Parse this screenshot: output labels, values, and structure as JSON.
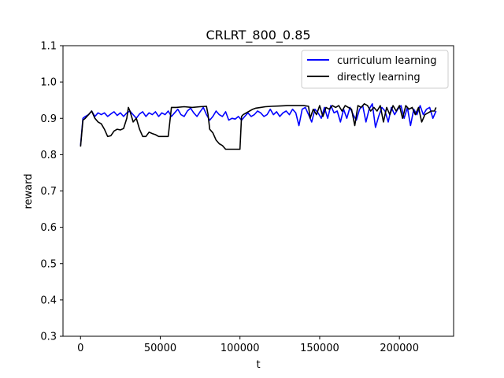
{
  "chart_data": {
    "type": "line",
    "title": "CRLRT_800_0.85",
    "xlabel": "t",
    "ylabel": "reward",
    "xlim": [
      -11000,
      234000
    ],
    "ylim": [
      0.3,
      1.1
    ],
    "xticks": [
      0,
      50000,
      100000,
      150000,
      200000
    ],
    "xtick_labels": [
      "0",
      "50000",
      "100000",
      "150000",
      "200000"
    ],
    "yticks": [
      0.3,
      0.4,
      0.5,
      0.6,
      0.7,
      0.8,
      0.9,
      1.0,
      1.1
    ],
    "ytick_labels": [
      "0.3",
      "0.4",
      "0.5",
      "0.6",
      "0.7",
      "0.8",
      "0.9",
      "1.0",
      "1.1"
    ],
    "grid": false,
    "legend_position": "top-right",
    "series": [
      {
        "name": "curriculum learning",
        "color": "#0000ff",
        "x": [
          0,
          1500,
          3000,
          5000,
          7000,
          9000,
          11000,
          13000,
          15000,
          17000,
          19000,
          21000,
          23000,
          25000,
          27000,
          29000,
          31000,
          33000,
          35000,
          37000,
          39000,
          41000,
          43000,
          45000,
          47000,
          49000,
          51000,
          53000,
          55000,
          57000,
          59000,
          61000,
          63000,
          65000,
          67000,
          69000,
          71000,
          73000,
          75000,
          77000,
          79000,
          81000,
          83000,
          85000,
          87000,
          89000,
          91000,
          93000,
          95000,
          97000,
          99000,
          101000,
          103000,
          105000,
          107000,
          109000,
          111000,
          113000,
          115000,
          117000,
          119000,
          121000,
          123000,
          125000,
          127000,
          129000,
          131000,
          133000,
          135000,
          137000,
          139000,
          141000,
          143000,
          145000,
          147000,
          149000,
          151000,
          153000,
          155000,
          157000,
          159000,
          161000,
          163000,
          165000,
          167000,
          169000,
          171000,
          173000,
          175000,
          177000,
          179000,
          181000,
          183000,
          185000,
          187000,
          189000,
          191000,
          193000,
          195000,
          197000,
          199000,
          201000,
          203000,
          205000,
          207000,
          209000,
          211000,
          213000,
          215000,
          217000,
          219000,
          221000,
          223000
        ],
        "y": [
          0.825,
          0.9,
          0.905,
          0.91,
          0.92,
          0.905,
          0.915,
          0.91,
          0.915,
          0.905,
          0.912,
          0.918,
          0.908,
          0.915,
          0.905,
          0.915,
          0.92,
          0.91,
          0.9,
          0.912,
          0.918,
          0.905,
          0.915,
          0.91,
          0.918,
          0.905,
          0.915,
          0.91,
          0.92,
          0.905,
          0.915,
          0.925,
          0.91,
          0.905,
          0.92,
          0.928,
          0.915,
          0.905,
          0.918,
          0.93,
          0.91,
          0.895,
          0.905,
          0.92,
          0.91,
          0.905,
          0.918,
          0.895,
          0.9,
          0.898,
          0.905,
          0.895,
          0.905,
          0.915,
          0.905,
          0.91,
          0.92,
          0.915,
          0.905,
          0.91,
          0.925,
          0.91,
          0.918,
          0.905,
          0.915,
          0.92,
          0.91,
          0.925,
          0.915,
          0.88,
          0.925,
          0.93,
          0.91,
          0.89,
          0.925,
          0.915,
          0.9,
          0.93,
          0.9,
          0.935,
          0.915,
          0.92,
          0.89,
          0.925,
          0.9,
          0.93,
          0.91,
          0.895,
          0.925,
          0.935,
          0.89,
          0.925,
          0.94,
          0.875,
          0.905,
          0.93,
          0.92,
          0.89,
          0.93,
          0.91,
          0.925,
          0.935,
          0.9,
          0.93,
          0.88,
          0.925,
          0.91,
          0.935,
          0.91,
          0.925,
          0.93,
          0.9,
          0.92
        ]
      },
      {
        "name": "directly learning",
        "color": "#000000",
        "x": [
          0,
          1500,
          3000,
          5000,
          7000,
          9000,
          11000,
          13000,
          15000,
          17000,
          19000,
          21000,
          23000,
          25000,
          27000,
          29000,
          30000,
          31000,
          33000,
          35000,
          37000,
          39000,
          41000,
          43000,
          45000,
          47000,
          49000,
          51000,
          53000,
          55000,
          57000,
          60000,
          65000,
          70000,
          75000,
          79000,
          80000,
          81000,
          83000,
          85000,
          87000,
          89000,
          91000,
          93000,
          96000,
          100000,
          101000,
          102000,
          104000,
          106000,
          108000,
          110000,
          113000,
          116000,
          120000,
          125000,
          130000,
          135000,
          140000,
          143000,
          144000,
          146000,
          148000,
          150000,
          152000,
          154000,
          156000,
          158000,
          160000,
          162000,
          164000,
          166000,
          168000,
          170000,
          172000,
          174000,
          176000,
          178000,
          180000,
          182000,
          184000,
          186000,
          188000,
          190000,
          192000,
          194000,
          196000,
          198000,
          200000,
          202000,
          204000,
          206000,
          208000,
          210000,
          212000,
          214000,
          216000,
          218000,
          220000,
          222000,
          223000
        ],
        "y": [
          0.822,
          0.895,
          0.9,
          0.91,
          0.92,
          0.9,
          0.89,
          0.885,
          0.87,
          0.85,
          0.852,
          0.865,
          0.87,
          0.868,
          0.872,
          0.9,
          0.93,
          0.92,
          0.89,
          0.9,
          0.87,
          0.85,
          0.85,
          0.862,
          0.858,
          0.855,
          0.85,
          0.85,
          0.85,
          0.85,
          0.93,
          0.93,
          0.932,
          0.93,
          0.932,
          0.933,
          0.91,
          0.87,
          0.86,
          0.84,
          0.83,
          0.825,
          0.815,
          0.815,
          0.815,
          0.815,
          0.905,
          0.91,
          0.915,
          0.92,
          0.925,
          0.928,
          0.93,
          0.932,
          0.933,
          0.934,
          0.935,
          0.935,
          0.935,
          0.933,
          0.9,
          0.925,
          0.91,
          0.935,
          0.905,
          0.93,
          0.925,
          0.935,
          0.93,
          0.935,
          0.92,
          0.935,
          0.93,
          0.925,
          0.88,
          0.935,
          0.93,
          0.94,
          0.935,
          0.92,
          0.93,
          0.92,
          0.935,
          0.89,
          0.93,
          0.91,
          0.935,
          0.92,
          0.935,
          0.9,
          0.935,
          0.925,
          0.93,
          0.91,
          0.93,
          0.89,
          0.91,
          0.915,
          0.92,
          0.92,
          0.93
        ]
      }
    ]
  }
}
